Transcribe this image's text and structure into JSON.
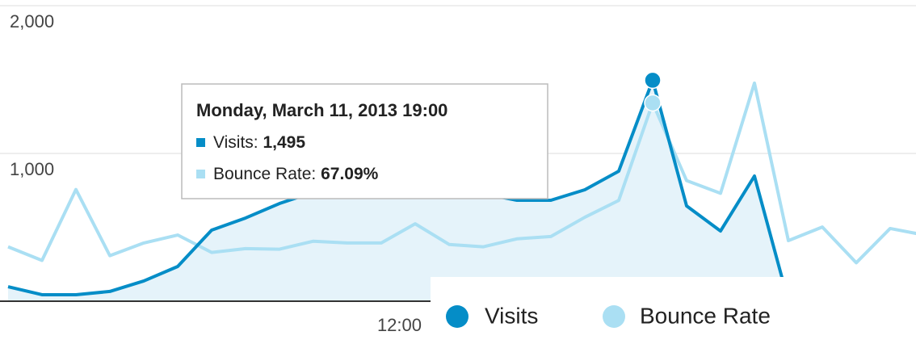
{
  "chart_data": {
    "type": "line",
    "categories": [
      null,
      null,
      null,
      null,
      null,
      null,
      null,
      null,
      null,
      null,
      null,
      null,
      "12:00",
      null,
      null,
      null,
      null,
      null,
      null,
      null,
      null,
      null,
      null,
      null,
      null,
      null,
      null,
      null
    ],
    "series": [
      {
        "name": "Visits",
        "color": "#058dc7",
        "fill": "#e5f3fa",
        "values": [
          98,
          44,
          44,
          66,
          137,
          235,
          481,
          563,
          661,
          738,
          809,
          836,
          781,
          754,
          727,
          683,
          683,
          754,
          880,
          1495,
          645,
          475,
          847,
          0,
          null,
          null,
          null,
          null
        ]
      },
      {
        "name": "Bounce Rate",
        "color": "#aadff3",
        "axis": "y2",
        "values": [
          18.4,
          13.8,
          37.8,
          15.4,
          19.7,
          22.4,
          16.5,
          17.8,
          17.6,
          20.3,
          19.7,
          19.7,
          26.2,
          19.2,
          18.4,
          21.1,
          21.9,
          28.4,
          34.1,
          67.09,
          40.8,
          36.5,
          73.8,
          20.5,
          25.1,
          13.0,
          24.6,
          22.4
        ]
      }
    ],
    "ylim": [
      0,
      2000
    ],
    "yticks": [
      {
        "value": 1000,
        "label": "1,000"
      },
      {
        "value": 2000,
        "label": "2,000"
      }
    ],
    "y2lim": [
      0,
      100
    ],
    "grid": true,
    "tooltip": {
      "title": "Monday, March 11, 2013 19:00",
      "items": [
        {
          "name": "Visits:",
          "value": 1495,
          "label": "1,495"
        },
        {
          "name": "Bounce Rate:",
          "value": 67.09,
          "label": "67.09%"
        }
      ]
    }
  }
}
